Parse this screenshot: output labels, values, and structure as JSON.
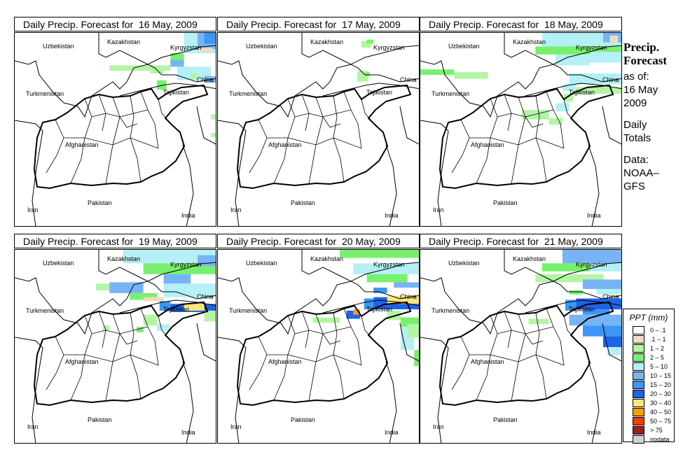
{
  "panels": [
    {
      "title": "Daily Precip. Forecast for  16 May, 2009",
      "cells": [
        [
          72.5,
          39.5,
          75,
          41,
          3
        ],
        [
          71.5,
          38.5,
          72.5,
          39.5,
          2
        ],
        [
          73.5,
          39.8,
          75,
          41,
          4
        ],
        [
          74,
          40.2,
          75,
          41,
          5
        ],
        [
          73.6,
          39.6,
          74.6,
          39.9,
          0
        ],
        [
          71.5,
          38.5,
          72.5,
          39,
          4
        ],
        [
          67,
          38.2,
          71.5,
          38.6,
          1
        ],
        [
          70,
          38,
          71,
          38.2,
          1
        ],
        [
          72,
          37.5,
          74.5,
          38.5,
          3
        ],
        [
          74,
          37.3,
          75,
          37.8,
          4
        ],
        [
          73,
          37.6,
          73.5,
          38,
          1
        ],
        [
          70.5,
          36.8,
          71.2,
          37.5,
          2
        ],
        [
          74.5,
          34.6,
          75,
          35,
          1
        ],
        [
          74.5,
          33.3,
          75,
          33.6,
          1
        ]
      ]
    },
    {
      "title": "Daily Precip. Forecast for  17 May, 2009",
      "cells": [
        [
          70.6,
          39.9,
          71.3,
          40.4,
          1
        ],
        [
          71,
          40.2,
          71.5,
          40.5,
          2
        ],
        [
          70.3,
          37.4,
          71.1,
          38.2,
          1
        ],
        [
          70.9,
          37.8,
          71.2,
          38.1,
          2
        ]
      ]
    },
    {
      "title": "Daily Precip. Forecast for  18 May, 2009",
      "cells": [
        [
          69,
          40,
          75,
          41,
          3
        ],
        [
          68.5,
          39.4,
          75,
          40,
          2
        ],
        [
          70,
          38.6,
          72.5,
          39.4,
          3
        ],
        [
          72.5,
          38.8,
          75,
          39.6,
          3
        ],
        [
          73.5,
          40.3,
          75,
          41,
          4
        ],
        [
          74,
          40.3,
          74.6,
          40.8,
          0
        ],
        [
          60,
          37.9,
          62.5,
          38.3,
          2
        ],
        [
          62.5,
          37.6,
          65,
          38.1,
          1
        ],
        [
          71,
          37.2,
          75,
          38,
          3
        ],
        [
          70.5,
          36.7,
          71.5,
          37.2,
          3
        ],
        [
          71.5,
          36.5,
          75,
          37,
          1
        ],
        [
          70,
          35.2,
          71,
          35.8,
          3
        ],
        [
          67.5,
          34.6,
          69.5,
          35.3,
          1
        ],
        [
          69.5,
          34.2,
          70.5,
          34.7,
          1
        ],
        [
          70.6,
          35.9,
          71.3,
          36.5,
          1
        ]
      ]
    },
    {
      "title": "Daily Precip. Forecast for  19 May, 2009",
      "cells": [
        [
          68,
          40,
          75,
          41,
          3
        ],
        [
          69.5,
          39.2,
          75,
          40,
          2
        ],
        [
          71,
          38.5,
          73,
          39.2,
          4
        ],
        [
          73.5,
          39.8,
          75,
          40.6,
          4
        ],
        [
          66,
          38,
          67.5,
          38.5,
          1
        ],
        [
          67,
          37.8,
          69.5,
          38.6,
          4
        ],
        [
          68.5,
          37.3,
          70.5,
          37.8,
          2
        ],
        [
          69.5,
          37.2,
          71,
          37.5,
          0
        ],
        [
          71,
          37.5,
          75,
          38.5,
          3
        ],
        [
          70.7,
          36.5,
          71.5,
          37.2,
          5
        ],
        [
          71.5,
          36.4,
          75,
          37,
          6
        ],
        [
          72.5,
          36.5,
          74,
          37,
          7
        ],
        [
          74,
          35.7,
          75,
          36.5,
          1
        ],
        [
          69.5,
          35.4,
          70.5,
          36.2,
          1
        ],
        [
          66.5,
          35,
          67,
          35.4,
          1
        ],
        [
          70.5,
          35,
          71.5,
          35.5,
          3
        ],
        [
          69,
          34.9,
          69.5,
          35.3,
          2
        ]
      ]
    },
    {
      "title": "Daily Precip. Forecast for  20 May, 2009",
      "cells": [
        [
          69,
          40.4,
          75,
          41,
          2
        ],
        [
          70,
          39.2,
          75,
          40,
          3
        ],
        [
          71,
          38.6,
          74,
          39.2,
          2
        ],
        [
          73,
          38.2,
          75,
          38.6,
          4
        ],
        [
          71.5,
          37.8,
          72.5,
          38.2,
          5
        ],
        [
          70.8,
          36.6,
          71.7,
          37.4,
          5
        ],
        [
          71.5,
          36.6,
          75,
          37.5,
          6
        ],
        [
          72.5,
          37,
          75,
          37.6,
          7
        ],
        [
          69.5,
          35.9,
          70.5,
          36.5,
          6
        ],
        [
          70,
          36.2,
          70.5,
          36.6,
          8
        ],
        [
          72.5,
          35.8,
          73.5,
          36.5,
          1
        ],
        [
          73.5,
          35.3,
          75,
          36,
          2
        ],
        [
          73.5,
          33.6,
          74.5,
          35.3,
          3
        ],
        [
          74,
          34.5,
          75,
          35.5,
          1
        ],
        [
          67,
          35.6,
          69,
          36,
          1
        ],
        [
          74.5,
          32.4,
          75,
          33.6,
          2
        ]
      ]
    },
    {
      "title": "Daily Precip. Forecast for  21 May, 2009",
      "cells": [
        [
          70.5,
          40,
          75,
          41,
          4
        ],
        [
          69,
          39.4,
          72.5,
          40,
          2
        ],
        [
          72.5,
          39.4,
          75,
          40,
          3
        ],
        [
          68.5,
          38.6,
          73.5,
          39.2,
          1
        ],
        [
          72,
          38.1,
          75,
          38.8,
          4
        ],
        [
          73,
          37.7,
          75,
          38.1,
          3
        ],
        [
          70.7,
          36.5,
          71.5,
          37.3,
          5
        ],
        [
          71.5,
          36.6,
          75,
          37.4,
          6
        ],
        [
          72,
          36.2,
          74,
          36.6,
          5
        ],
        [
          71,
          35.4,
          75,
          36.2,
          4
        ],
        [
          72,
          34.6,
          75,
          35.4,
          5
        ],
        [
          73.5,
          33.8,
          75,
          34.6,
          6
        ],
        [
          73.8,
          33.2,
          74.8,
          33.8,
          3
        ],
        [
          68,
          35.5,
          69.5,
          35.9,
          1
        ],
        [
          71,
          37.7,
          72,
          38,
          2
        ]
      ]
    }
  ],
  "countries": [
    "Uzbekistan",
    "Kazakhstan",
    "Kyrgyzstan",
    "China",
    "Tajikistan",
    "Turkmenistan",
    "Afghanistan",
    "Pakistan",
    "Iran",
    "India"
  ],
  "side": {
    "title1": "Precip.",
    "title2": "Forecast",
    "asof": "as of:",
    "date1": "16 May",
    "date2": "2009",
    "totals1": "Daily",
    "totals2": "Totals",
    "data1": "Data:",
    "data2": "NOAA–",
    "data3": "GFS"
  },
  "legend": {
    "title": "PPT (mm)",
    "classes": [
      {
        "label": "0 – .1",
        "color": "#ffffff"
      },
      {
        "label": ".1 – 1",
        "color": "#f0dcbe"
      },
      {
        "label": "1 – 2",
        "color": "#b4f5a5"
      },
      {
        "label": "2 – 5",
        "color": "#78f06e"
      },
      {
        "label": "5 – 10",
        "color": "#b4f0f5"
      },
      {
        "label": "10 – 15",
        "color": "#78b4f5"
      },
      {
        "label": "15 – 20",
        "color": "#3c96f5"
      },
      {
        "label": "20 – 30",
        "color": "#1e64e6"
      },
      {
        "label": "30 – 40",
        "color": "#ffe678"
      },
      {
        "label": "40 – 50",
        "color": "#ffa000"
      },
      {
        "label": "50 – 75",
        "color": "#ff3c00"
      },
      {
        "label": "> 75",
        "color": "#a01e1e"
      },
      {
        "label": "nodata",
        "color": "#d2d2d2"
      }
    ]
  }
}
